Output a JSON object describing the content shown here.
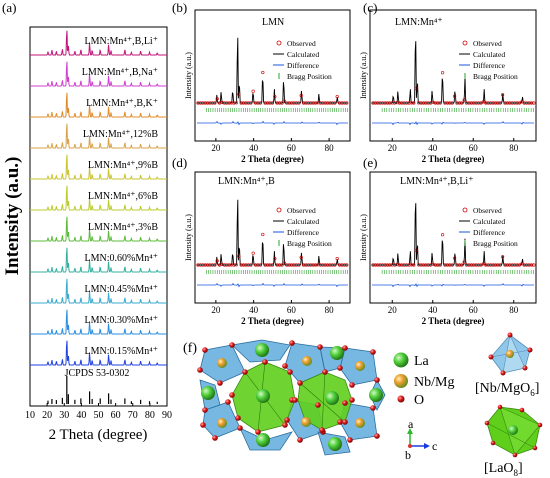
{
  "panel_a": {
    "label": "(a)",
    "ylabel": "Intensity (a.u.)",
    "xlabel": "2 Theta (degree)",
    "xticks": [
      "10",
      "20",
      "30",
      "40",
      "50",
      "60",
      "70",
      "80",
      "90"
    ],
    "traces": [
      {
        "label": "LMN:Mn⁴⁺,B,Li⁺",
        "color": "#c0147a"
      },
      {
        "label": "LMN:Mn⁴⁺,B,Na⁺",
        "color": "#cf3fcf"
      },
      {
        "label": "LMN:Mn⁴⁺,B,K⁺",
        "color": "#e08c2a"
      },
      {
        "label": "LMN:Mn⁴⁺,12%B",
        "color": "#d9a24a"
      },
      {
        "label": "LMN:Mn⁴⁺,9%B",
        "color": "#c9c430"
      },
      {
        "label": "LMN:Mn⁴⁺,6%B",
        "color": "#b8cc2c"
      },
      {
        "label": "LMN:Mn⁴⁺,3%B",
        "color": "#5cbb3a"
      },
      {
        "label": "LMN:0.60%Mn⁴⁺",
        "color": "#33b0a0"
      },
      {
        "label": "LMN:0.45%Mn⁴⁺",
        "color": "#3aaad0"
      },
      {
        "label": "LMN:0.30%Mn⁴⁺",
        "color": "#2a8ee0"
      },
      {
        "label": "LMN:0.15%Mn⁴⁺",
        "color": "#2040e0"
      }
    ],
    "ref_label": "JCPDS 53-0302",
    "ref_color": "#000000",
    "ref_peaks": [
      {
        "x": 20.5,
        "h": 0.12
      },
      {
        "x": 22.8,
        "h": 0.18
      },
      {
        "x": 25.4,
        "h": 0.14
      },
      {
        "x": 28.9,
        "h": 0.22
      },
      {
        "x": 31.5,
        "h": 1.0
      },
      {
        "x": 32.4,
        "h": 0.35
      },
      {
        "x": 36.2,
        "h": 0.15
      },
      {
        "x": 39.7,
        "h": 0.2
      },
      {
        "x": 44.8,
        "h": 0.45
      },
      {
        "x": 46.3,
        "h": 0.18
      },
      {
        "x": 51.0,
        "h": 0.2
      },
      {
        "x": 55.9,
        "h": 0.38
      },
      {
        "x": 57.3,
        "h": 0.16
      },
      {
        "x": 65.4,
        "h": 0.2
      },
      {
        "x": 69.2,
        "h": 0.1
      },
      {
        "x": 74.6,
        "h": 0.15
      },
      {
        "x": 79.8,
        "h": 0.1
      },
      {
        "x": 84.3,
        "h": 0.08
      }
    ]
  },
  "refine_panels": [
    {
      "label": "(b)",
      "title": "LMN"
    },
    {
      "label": "(c)",
      "title": "LMN:Mn⁴⁺"
    },
    {
      "label": "(d)",
      "title": "LMN:Mn⁴⁺,B"
    },
    {
      "label": "(e)",
      "title": "LMN:Mn⁴⁺,B,Li⁺"
    }
  ],
  "refine_common": {
    "ylabel": "Intensity (a.u.)",
    "xlabel": "2 Theta (degree)",
    "xticks": [
      "20",
      "40",
      "60",
      "80"
    ],
    "legend": [
      "Observed",
      "Calculated",
      "Difference",
      "Bragg Position"
    ],
    "colors": {
      "observed": "#cc0000",
      "calculated": "#000000",
      "difference": "#1a55e0",
      "bragg": "#2ca02c"
    }
  },
  "panel_f": {
    "label": "(f)",
    "legend": [
      {
        "name": "La",
        "color": "#2db82d"
      },
      {
        "name": "Nb/Mg",
        "color": "#e0a020"
      },
      {
        "name": "O",
        "color": "#d01010"
      }
    ],
    "poly1_label": "[Nb/MgO",
    "poly1_sub": "6",
    "poly2_label": "[LaO",
    "poly2_sub": "8",
    "axis_a": "a",
    "axis_b": "b",
    "axis_c": "c"
  }
}
